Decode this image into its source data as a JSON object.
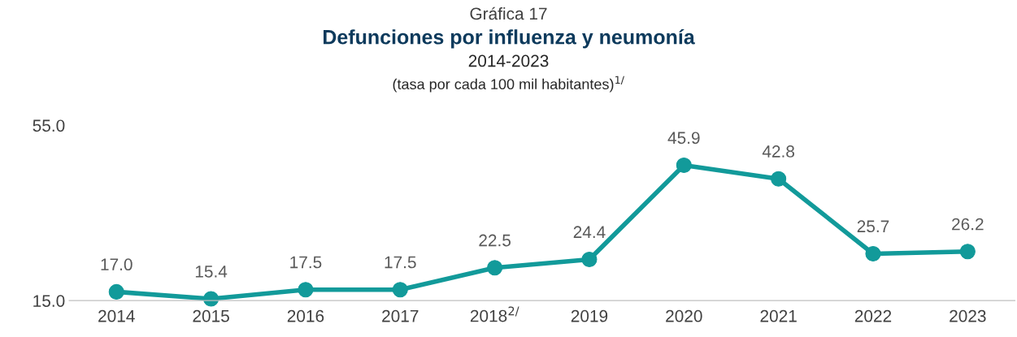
{
  "chart_data": {
    "type": "line",
    "title": "Defunciones por influenza y neumonía",
    "subtitle": "2014-2023",
    "annotations": [
      "Gráfica 17",
      "(tasa por cada 100 mil habitantes)$^{1/}$"
    ],
    "categories": [
      "2014",
      "2015",
      "2016",
      "2017",
      "2018$^{2/}$",
      "2019",
      "2020",
      "2021",
      "2022",
      "2023"
    ],
    "series": [
      {
        "color": "#129a9a",
        "values": [
          17.0,
          15.4,
          17.5,
          17.5,
          22.5,
          24.4,
          45.9,
          42.8,
          25.7,
          26.2
        ],
        "value_labels": [
          "17.0",
          "15.4",
          "17.5",
          "17.5",
          "22.5",
          "24.4",
          "45.9",
          "42.8",
          "25.7",
          "26.2"
        ]
      }
    ],
    "ylim": [
      15,
      55
    ],
    "yticks": [
      {
        "value": 15,
        "label": "15.0"
      },
      {
        "value": 55,
        "label": "55.0"
      }
    ],
    "marker": "circle",
    "line_style": "solid",
    "grid": false
  }
}
